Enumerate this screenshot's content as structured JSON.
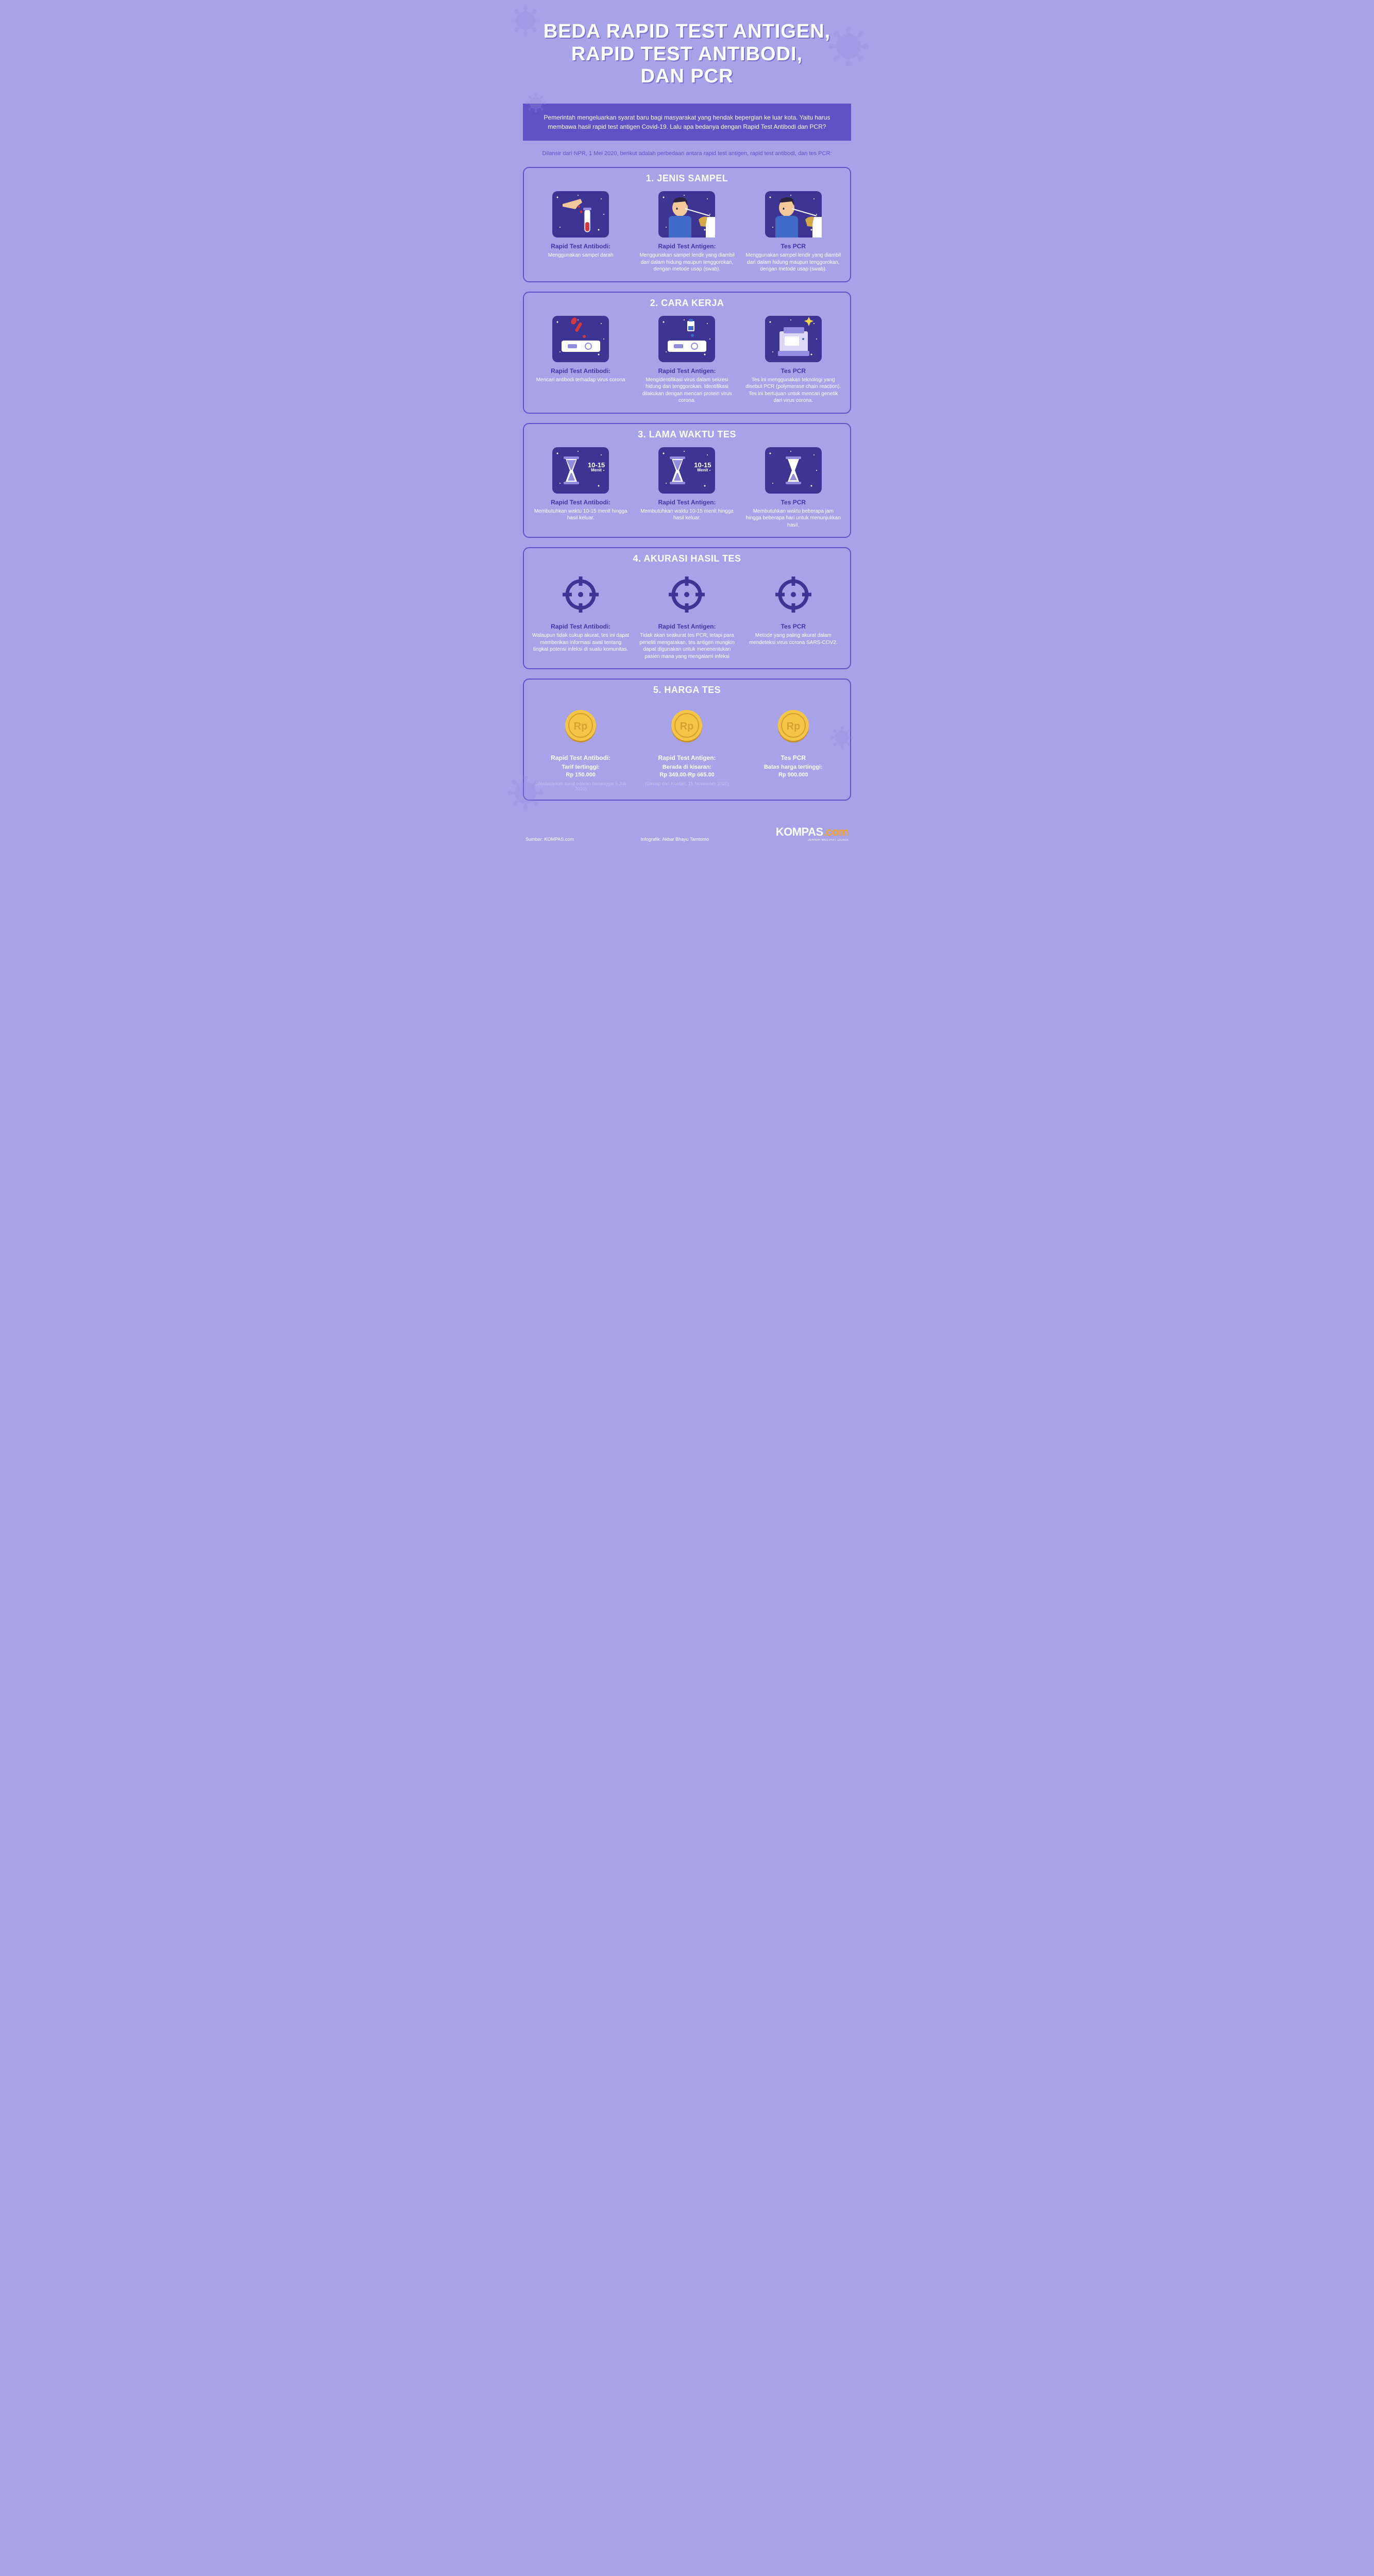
{
  "colors": {
    "bg": "#a8a3e8",
    "intro_bg": "#5e52c7",
    "border": "#5e52c7",
    "icon_bg": "#3d3494",
    "text_white": "#ffffff",
    "text_dark": "#4036a8",
    "gold": "#f5a623",
    "skin": "#f5c89a",
    "hair": "#2c2540",
    "shirt": "#3d6bc7",
    "blood": "#d93838"
  },
  "title_lines": [
    "BEDA RAPID TEST ANTIGEN,",
    "RAPID TEST ANTIBODI,",
    "DAN PCR"
  ],
  "intro": "Pemerintah mengeluarkan syarat baru bagi masyarakat yang hendak bepergian ke luar kota. Yaitu harus membawa hasil rapid test antigen Covid-19. Lalu apa bedanya dengan Rapid Test Antibodi dan PCR?",
  "subintro": "Dilansir dari NPR, 1 Mei 2020, berikut adalah perbedaan antara rapid test antigen, rapid test antibodi, dan tes PCR:",
  "sections": [
    {
      "title": "1. JENIS SAMPEL",
      "icon": "sample",
      "cols": [
        {
          "title": "Rapid Test Antibodi:",
          "desc": "Menggunakan sampel darah",
          "icon": "blood"
        },
        {
          "title": "Rapid Test Antigen:",
          "desc": "Menggunakan sampel lendir yang diambil dari dalam hidung maupun tenggorokan, dengan metode usap (swab).",
          "icon": "swab"
        },
        {
          "title": "Tes PCR",
          "desc": "Menggunakan sampel lendir yang diambil dari dalam hidung maupun tenggorokan, dengan metode usap (swab).",
          "icon": "swab"
        }
      ]
    },
    {
      "title": "2. CARA KERJA",
      "icon": "work",
      "cols": [
        {
          "title": "Rapid Test Antibodi:",
          "desc": "Mencari antibodi terhadap virus corona",
          "icon": "dropper"
        },
        {
          "title": "Rapid Test Antigen:",
          "desc": "Mengidentifikasi virus dalam sekresi hidung dan tenggorokan. Identifikasi dilakukan dengan mencari protein virus corona.",
          "icon": "reagent"
        },
        {
          "title": "Tes PCR",
          "desc": "Tes ini menggunakan teknologi yang disebut PCR (polymerase chain reaction). Tes ini bertujuan untuk mencari genetik dari virus corona.",
          "icon": "machine"
        }
      ]
    },
    {
      "title": "3. LAMA WAKTU TES",
      "icon": "time",
      "cols": [
        {
          "title": "Rapid Test Antibodi:",
          "desc": "Membutuhkan waktu 10-15 menit hingga hasil keluar.",
          "icon": "hourglass-full",
          "label": "10-15",
          "sublabel": "Menit"
        },
        {
          "title": "Rapid Test Antigen:",
          "desc": "Membutuhkan waktu 10-15 menit hingga hasil keluar.",
          "icon": "hourglass-full",
          "label": "10-15",
          "sublabel": "Menit"
        },
        {
          "title": "Tes PCR",
          "desc": "Membutuhkan waktu beberapa jam hingga beberapa hari untuk menunjukkan hasil.",
          "icon": "hourglass-empty"
        }
      ]
    },
    {
      "title": "4. AKURASI HASIL TES",
      "icon": "accuracy",
      "cols": [
        {
          "title": "Rapid Test Antibodi:",
          "desc": "Walaupun tidak cukup akurat, tes ini dapat memberikan informasi awal tentang tingkat potensi infeksi di suatu komunitas.",
          "icon": "crosshair"
        },
        {
          "title": "Rapid Test Antigen:",
          "desc": "Tidak akan seakurat tes PCR, tetapi para peneliti mengatakan, tes antigen mungkin dapat digunakan untuk menenentukan pasien mana yang mengalami infeksi",
          "icon": "crosshair"
        },
        {
          "title": "Tes PCR",
          "desc": "Metode yang paling akurat dalam mendeteksi virus corona SARS-COV2.",
          "icon": "crosshair"
        }
      ]
    },
    {
      "title": "5. HARGA TES",
      "icon": "price",
      "title_white": true,
      "cols": [
        {
          "title": "Rapid Test Antibodi:",
          "price_label": "Tarif tertinggi:",
          "price": "Rp 150.000",
          "note": "(Berdasarkan surat edaran bertanggal 6 Juli 2020)",
          "icon": "coin"
        },
        {
          "title": "Rapid Test Antigen:",
          "price_label": "Berada di kisaran:",
          "price": "Rp 349.00-Rp 665.00",
          "note": "(Dikutip dari Kontan, 15 November 2020)",
          "icon": "coin"
        },
        {
          "title": "Tes PCR",
          "price_label": "Batas harga tertinggi:",
          "price": "Rp 900.000",
          "icon": "coin"
        }
      ]
    }
  ],
  "footer": {
    "source": "Sumber: KOMPAS.com",
    "credit": "Infografik: Akbar Bhayu Tamtomo",
    "logo_main": "KOMPAS",
    "logo_com": ".com",
    "logo_tag": "JERNIH MELIHAT DUNIA"
  }
}
